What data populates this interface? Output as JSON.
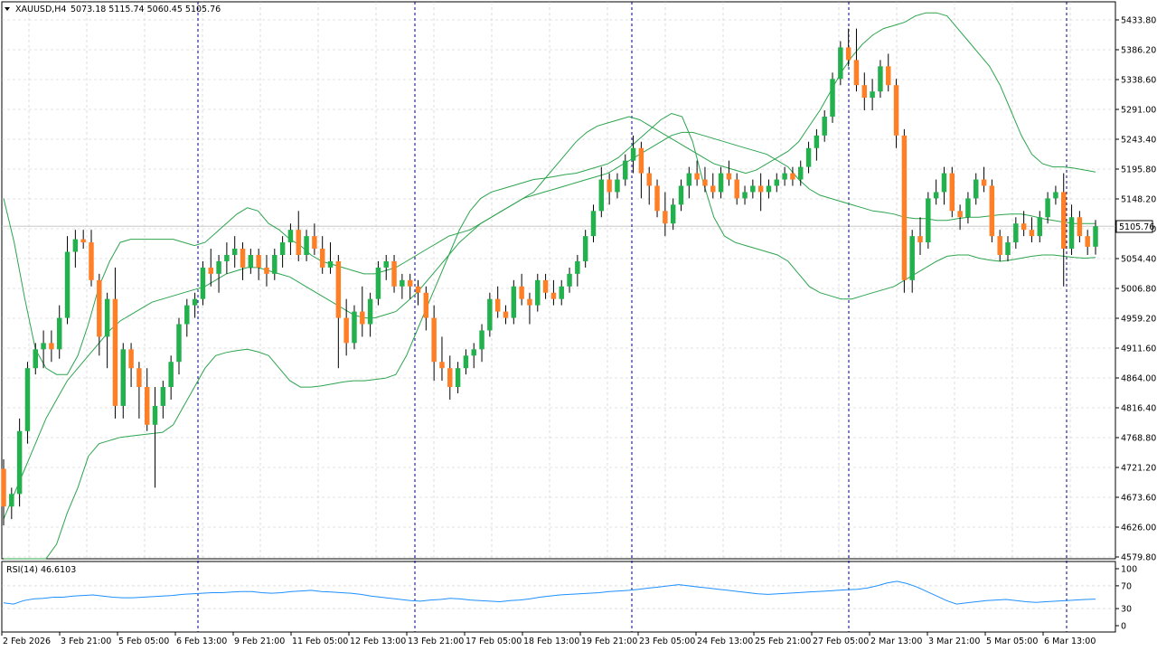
{
  "window": {
    "symbol_header": "XAUUSD,H4",
    "ohlc_header": "5073.18 5115.74 5060.45 5105.76",
    "current_price_label": "5105.76",
    "rsi_header": "RSI(14) 46.6103"
  },
  "colors": {
    "bull": "#22b14c",
    "bear": "#ff7f27",
    "wick": "#000000",
    "bands": "#2ca44e",
    "rsi_line": "#1e90ff",
    "grid": "#c8c8c8",
    "separator": "#000080"
  },
  "chart_data": [
    {
      "type": "candlestick",
      "series_label": "XAUUSD,H4",
      "overlay": "bollinger-bands",
      "price_axis_ticks": [
        "5433.80",
        "5386.20",
        "5338.60",
        "5291.00",
        "5243.40",
        "5195.80",
        "5148.20",
        "5100.60",
        "5054.40",
        "5006.80",
        "4959.20",
        "4911.60",
        "4864.00",
        "4816.40",
        "4768.80",
        "4721.20",
        "4673.60",
        "4626.00",
        "4579.80"
      ],
      "time_axis_ticks": [
        "2 Feb 2026",
        "3 Feb 21:00",
        "5 Feb 05:00",
        "6 Feb 13:00",
        "9 Feb 21:00",
        "11 Feb 05:00",
        "12 Feb 13:00",
        "13 Feb 21:00",
        "17 Feb 05:00",
        "18 Feb 13:00",
        "19 Feb 21:00",
        "23 Feb 05:00",
        "24 Feb 13:00",
        "25 Feb 21:00",
        "27 Feb 05:00",
        "2 Mar 13:00",
        "3 Mar 21:00",
        "5 Mar 05:00",
        "6 Mar 13:00"
      ],
      "ylim": [
        4579.8,
        5450
      ],
      "day_separators": [
        "3 Feb",
        "6 Feb",
        "13 Feb",
        "23 Feb",
        "27 Feb",
        "6 Mar"
      ],
      "candles": [
        [
          4720,
          4735,
          4630,
          4660
        ],
        [
          4660,
          4690,
          4640,
          4680
        ],
        [
          4680,
          4800,
          4660,
          4780
        ],
        [
          4780,
          4890,
          4760,
          4880
        ],
        [
          4880,
          4920,
          4870,
          4910
        ],
        [
          4910,
          4940,
          4880,
          4920
        ],
        [
          4920,
          4940,
          4890,
          4910
        ],
        [
          4910,
          4980,
          4895,
          4960
        ],
        [
          4960,
          5090,
          4950,
          5065
        ],
        [
          5065,
          5100,
          5040,
          5085
        ],
        [
          5085,
          5100,
          5070,
          5080
        ],
        [
          5080,
          5100,
          5010,
          5020
        ],
        [
          5020,
          5030,
          4900,
          4930
        ],
        [
          4930,
          5000,
          4880,
          4990
        ],
        [
          4990,
          5040,
          4800,
          4820
        ],
        [
          4820,
          4920,
          4800,
          4910
        ],
        [
          4910,
          4920,
          4850,
          4880
        ],
        [
          4880,
          4890,
          4800,
          4850
        ],
        [
          4850,
          4880,
          4780,
          4790
        ],
        [
          4790,
          4850,
          4690,
          4820
        ],
        [
          4820,
          4860,
          4800,
          4850
        ],
        [
          4850,
          4900,
          4830,
          4890
        ],
        [
          4890,
          4960,
          4870,
          4950
        ],
        [
          4950,
          4990,
          4930,
          4980
        ],
        [
          4980,
          5000,
          4960,
          4990
        ],
        [
          4990,
          5050,
          4980,
          5040
        ],
        [
          5040,
          5070,
          5010,
          5030
        ],
        [
          5030,
          5060,
          5000,
          5050
        ],
        [
          5050,
          5080,
          5030,
          5060
        ],
        [
          5060,
          5090,
          5040,
          5070
        ],
        [
          5070,
          5080,
          5020,
          5040
        ],
        [
          5040,
          5070,
          5030,
          5060
        ],
        [
          5060,
          5070,
          5020,
          5040
        ],
        [
          5040,
          5060,
          5010,
          5030
        ],
        [
          5030,
          5070,
          5020,
          5060
        ],
        [
          5060,
          5090,
          5040,
          5080
        ],
        [
          5080,
          5110,
          5060,
          5100
        ],
        [
          5100,
          5130,
          5050,
          5060
        ],
        [
          5060,
          5100,
          5050,
          5090
        ],
        [
          5090,
          5110,
          5060,
          5070
        ],
        [
          5070,
          5090,
          5030,
          5040
        ],
        [
          5040,
          5080,
          5030,
          5050
        ],
        [
          5050,
          5060,
          4880,
          4960
        ],
        [
          4960,
          4990,
          4900,
          4920
        ],
        [
          4920,
          4980,
          4910,
          4970
        ],
        [
          4970,
          5010,
          4930,
          4950
        ],
        [
          4950,
          5000,
          4930,
          4990
        ],
        [
          4990,
          5050,
          4980,
          5040
        ],
        [
          5040,
          5060,
          5020,
          5050
        ],
        [
          5050,
          5060,
          5000,
          5010
        ],
        [
          5010,
          5030,
          4990,
          5020
        ],
        [
          5020,
          5030,
          4990,
          5010
        ],
        [
          5010,
          5020,
          4980,
          5000
        ],
        [
          5000,
          5010,
          4940,
          4960
        ],
        [
          4960,
          4980,
          4860,
          4890
        ],
        [
          4890,
          4930,
          4860,
          4880
        ],
        [
          4880,
          4900,
          4830,
          4850
        ],
        [
          4850,
          4890,
          4840,
          4880
        ],
        [
          4880,
          4910,
          4870,
          4900
        ],
        [
          4900,
          4920,
          4880,
          4910
        ],
        [
          4910,
          4950,
          4890,
          4940
        ],
        [
          4940,
          5000,
          4930,
          4990
        ],
        [
          4990,
          5010,
          4960,
          4970
        ],
        [
          4970,
          4980,
          4950,
          4960
        ],
        [
          4960,
          5020,
          4950,
          5010
        ],
        [
          5010,
          5030,
          4980,
          4990
        ],
        [
          4990,
          5000,
          4950,
          4980
        ],
        [
          4980,
          5030,
          4970,
          5020
        ],
        [
          5020,
          5030,
          4990,
          5000
        ],
        [
          5000,
          5020,
          4980,
          4990
        ],
        [
          4990,
          5020,
          4980,
          5010
        ],
        [
          5010,
          5040,
          5000,
          5030
        ],
        [
          5030,
          5060,
          5010,
          5050
        ],
        [
          5050,
          5100,
          5040,
          5090
        ],
        [
          5090,
          5140,
          5080,
          5130
        ],
        [
          5130,
          5200,
          5120,
          5180
        ],
        [
          5180,
          5190,
          5140,
          5160
        ],
        [
          5160,
          5190,
          5150,
          5180
        ],
        [
          5180,
          5220,
          5170,
          5210
        ],
        [
          5210,
          5250,
          5190,
          5230
        ],
        [
          5230,
          5240,
          5150,
          5190
        ],
        [
          5190,
          5200,
          5140,
          5170
        ],
        [
          5170,
          5180,
          5120,
          5130
        ],
        [
          5130,
          5160,
          5090,
          5110
        ],
        [
          5110,
          5150,
          5100,
          5140
        ],
        [
          5140,
          5180,
          5130,
          5170
        ],
        [
          5170,
          5200,
          5150,
          5190
        ],
        [
          5190,
          5210,
          5170,
          5180
        ],
        [
          5180,
          5200,
          5160,
          5170
        ],
        [
          5170,
          5190,
          5150,
          5160
        ],
        [
          5160,
          5200,
          5150,
          5190
        ],
        [
          5190,
          5210,
          5170,
          5180
        ],
        [
          5180,
          5190,
          5140,
          5150
        ],
        [
          5150,
          5170,
          5140,
          5160
        ],
        [
          5160,
          5180,
          5150,
          5170
        ],
        [
          5170,
          5190,
          5130,
          5160
        ],
        [
          5160,
          5180,
          5150,
          5170
        ],
        [
          5170,
          5190,
          5160,
          5180
        ],
        [
          5180,
          5200,
          5170,
          5190
        ],
        [
          5190,
          5200,
          5170,
          5180
        ],
        [
          5180,
          5210,
          5170,
          5200
        ],
        [
          5200,
          5240,
          5190,
          5230
        ],
        [
          5230,
          5260,
          5210,
          5250
        ],
        [
          5250,
          5290,
          5240,
          5280
        ],
        [
          5280,
          5350,
          5270,
          5340
        ],
        [
          5340,
          5400,
          5330,
          5390
        ],
        [
          5390,
          5420,
          5360,
          5370
        ],
        [
          5370,
          5420,
          5320,
          5330
        ],
        [
          5330,
          5350,
          5290,
          5310
        ],
        [
          5310,
          5340,
          5290,
          5320
        ],
        [
          5320,
          5370,
          5310,
          5360
        ],
        [
          5360,
          5380,
          5320,
          5330
        ],
        [
          5330,
          5340,
          5230,
          5250
        ],
        [
          5250,
          5260,
          5000,
          5020
        ],
        [
          5020,
          5100,
          5000,
          5090
        ],
        [
          5090,
          5120,
          5060,
          5080
        ],
        [
          5080,
          5160,
          5070,
          5150
        ],
        [
          5150,
          5180,
          5140,
          5160
        ],
        [
          5160,
          5200,
          5140,
          5190
        ],
        [
          5190,
          5200,
          5120,
          5130
        ],
        [
          5130,
          5140,
          5100,
          5120
        ],
        [
          5120,
          5160,
          5110,
          5150
        ],
        [
          5150,
          5190,
          5140,
          5180
        ],
        [
          5180,
          5200,
          5160,
          5170
        ],
        [
          5170,
          5180,
          5080,
          5090
        ],
        [
          5090,
          5100,
          5050,
          5060
        ],
        [
          5060,
          5090,
          5050,
          5080
        ],
        [
          5080,
          5120,
          5070,
          5110
        ],
        [
          5110,
          5130,
          5090,
          5100
        ],
        [
          5100,
          5120,
          5080,
          5090
        ],
        [
          5090,
          5130,
          5080,
          5120
        ],
        [
          5120,
          5160,
          5110,
          5150
        ],
        [
          5150,
          5170,
          5140,
          5160
        ],
        [
          5160,
          5190,
          5010,
          5070
        ],
        [
          5070,
          5140,
          5060,
          5120
        ],
        [
          5120,
          5130,
          5080,
          5090
        ],
        [
          5090,
          5100,
          5060,
          5073
        ],
        [
          5073.18,
          5115.74,
          5060.45,
          5105.76
        ]
      ],
      "bollinger_upper": [
        5150,
        5080,
        4990,
        4910,
        4880,
        4870,
        4870,
        4900,
        4950,
        5010,
        5050,
        5080,
        5085,
        5085,
        5085,
        5085,
        5085,
        5080,
        5075,
        5080,
        5095,
        5110,
        5125,
        5135,
        5130,
        5110,
        5100,
        5085,
        5075,
        5060,
        5050,
        5045,
        5040,
        5035,
        5030,
        5030,
        5035,
        5040,
        5050,
        5060,
        5070,
        5080,
        5090,
        5095,
        5100,
        5110,
        5120,
        5130,
        5140,
        5150,
        5160,
        5180,
        5200,
        5220,
        5240,
        5255,
        5265,
        5270,
        5275,
        5280,
        5275,
        5265,
        5255,
        5245,
        5235,
        5225,
        5215,
        5205,
        5200,
        5195,
        5190,
        5195,
        5205,
        5215,
        5225,
        5240,
        5265,
        5290,
        5320,
        5350,
        5375,
        5395,
        5410,
        5420,
        5425,
        5430,
        5440,
        5445,
        5445,
        5440,
        5420,
        5400,
        5380,
        5360,
        5330,
        5290,
        5250,
        5220,
        5205,
        5200,
        5200,
        5198,
        5195,
        5192
      ],
      "bollinger_middle": [
        4640,
        4680,
        4720,
        4760,
        4800,
        4830,
        4860,
        4880,
        4900,
        4920,
        4940,
        4955,
        4965,
        4975,
        4985,
        4990,
        4995,
        5000,
        5005,
        5010,
        5020,
        5030,
        5035,
        5040,
        5040,
        5035,
        5030,
        5025,
        5015,
        5005,
        4995,
        4985,
        4975,
        4965,
        4960,
        4960,
        4965,
        4970,
        4985,
        5000,
        5020,
        5040,
        5060,
        5080,
        5095,
        5110,
        5120,
        5130,
        5140,
        5150,
        5155,
        5160,
        5165,
        5170,
        5175,
        5180,
        5185,
        5190,
        5200,
        5210,
        5220,
        5230,
        5240,
        5250,
        5255,
        5255,
        5250,
        5245,
        5240,
        5235,
        5230,
        5225,
        5220,
        5210,
        5200,
        5180,
        5165,
        5155,
        5150,
        5145,
        5140,
        5135,
        5130,
        5128,
        5125,
        5120,
        5118,
        5118,
        5115,
        5115,
        5118,
        5120,
        5120,
        5122,
        5124,
        5125,
        5125,
        5122,
        5118,
        5115,
        5112,
        5110,
        5110,
        5110
      ],
      "bollinger_lower": [
        4150,
        4200,
        4300,
        4400,
        4500,
        4600,
        4650,
        4690,
        4740,
        4760,
        4765,
        4770,
        4772,
        4774,
        4776,
        4778,
        4790,
        4820,
        4850,
        4880,
        4900,
        4905,
        4908,
        4910,
        4906,
        4900,
        4880,
        4860,
        4850,
        4850,
        4852,
        4855,
        4858,
        4860,
        4860,
        4862,
        4864,
        4870,
        4900,
        4940,
        4980,
        5020,
        5060,
        5100,
        5130,
        5150,
        5160,
        5165,
        5170,
        5175,
        5180,
        5182,
        5185,
        5188,
        5190,
        5195,
        5200,
        5205,
        5215,
        5230,
        5245,
        5260,
        5275,
        5285,
        5280,
        5240,
        5175,
        5120,
        5090,
        5080,
        5075,
        5070,
        5065,
        5060,
        5050,
        5030,
        5010,
        5000,
        4995,
        4990,
        4990,
        4995,
        5000,
        5005,
        5010,
        5020,
        5030,
        5040,
        5050,
        5058,
        5060,
        5060,
        5055,
        5052,
        5050,
        5052,
        5055,
        5058,
        5060,
        5060,
        5058,
        5056,
        5055,
        5056
      ]
    },
    {
      "type": "line",
      "series_label": "RSI(14) 46.6103",
      "value_axis_ticks": [
        "100",
        "70",
        "30",
        "0"
      ],
      "ylim": [
        0,
        100
      ],
      "values": [
        40,
        38,
        44,
        47,
        48,
        50,
        50,
        52,
        53,
        54,
        52,
        50,
        49,
        49,
        50,
        51,
        52,
        53,
        55,
        56,
        57,
        58,
        58,
        59,
        60,
        60,
        58,
        57,
        58,
        60,
        61,
        62,
        60,
        59,
        58,
        57,
        55,
        52,
        50,
        48,
        46,
        44,
        43,
        45,
        46,
        48,
        47,
        45,
        44,
        43,
        42,
        44,
        45,
        47,
        50,
        52,
        54,
        55,
        56,
        57,
        58,
        60,
        61,
        62,
        64,
        66,
        68,
        70,
        72,
        70,
        68,
        66,
        64,
        62,
        60,
        58,
        56,
        55,
        56,
        57,
        58,
        59,
        60,
        61,
        62,
        63,
        64,
        66,
        70,
        75,
        78,
        74,
        68,
        60,
        52,
        44,
        38,
        40,
        42,
        44,
        45,
        46,
        44,
        42,
        41,
        42,
        43,
        44,
        45,
        46,
        46.61
      ]
    }
  ]
}
